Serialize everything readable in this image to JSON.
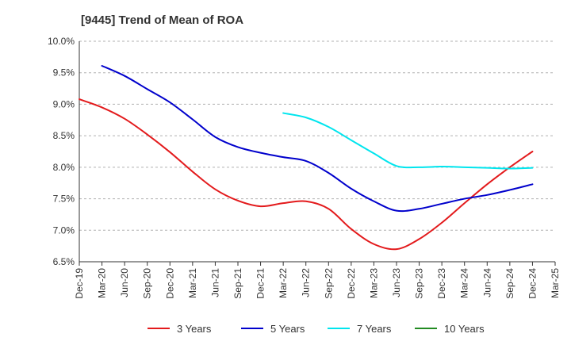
{
  "chart_data": {
    "type": "line",
    "title": "[9445]  Trend of Mean of ROA",
    "xlabel": "",
    "ylabel": "",
    "x_ticks": [
      "Dec-19",
      "Mar-20",
      "Jun-20",
      "Sep-20",
      "Dec-20",
      "Mar-21",
      "Jun-21",
      "Sep-21",
      "Dec-21",
      "Mar-22",
      "Jun-22",
      "Sep-22",
      "Dec-22",
      "Mar-23",
      "Jun-23",
      "Sep-23",
      "Dec-23",
      "Mar-24",
      "Jun-24",
      "Sep-24",
      "Dec-24",
      "Mar-25"
    ],
    "y_ticks": [
      "10.0%",
      "9.5%",
      "9.0%",
      "8.5%",
      "8.0%",
      "7.5%",
      "7.0%",
      "6.5%"
    ],
    "ylim": [
      6.5,
      10.0
    ],
    "grid": "horizontal dashed",
    "legend_position": "bottom",
    "series": [
      {
        "name": "3 Years",
        "color": "#e31a1c",
        "values": [
          9.08,
          8.95,
          8.77,
          8.52,
          8.24,
          7.93,
          7.65,
          7.47,
          7.38,
          7.43,
          7.46,
          7.34,
          7.02,
          6.78,
          6.7,
          6.86,
          7.12,
          7.43,
          7.73,
          8.0,
          8.25,
          null
        ]
      },
      {
        "name": "5 Years",
        "color": "#0000cc",
        "values": [
          null,
          9.61,
          9.45,
          9.24,
          9.03,
          8.76,
          8.48,
          8.32,
          8.23,
          8.16,
          8.1,
          7.91,
          7.66,
          7.46,
          7.31,
          7.34,
          7.42,
          7.5,
          7.56,
          7.64,
          7.73,
          null
        ]
      },
      {
        "name": "7 Years",
        "color": "#00e5ee",
        "values": [
          null,
          null,
          null,
          null,
          null,
          null,
          null,
          null,
          null,
          8.86,
          8.79,
          8.64,
          8.43,
          8.22,
          8.02,
          8.0,
          8.01,
          8.0,
          7.99,
          7.98,
          7.99,
          null
        ]
      },
      {
        "name": "10 Years",
        "color": "#228b22",
        "values": [
          null,
          null,
          null,
          null,
          null,
          null,
          null,
          null,
          null,
          null,
          null,
          null,
          null,
          null,
          null,
          null,
          null,
          null,
          null,
          null,
          null,
          null
        ]
      }
    ]
  }
}
